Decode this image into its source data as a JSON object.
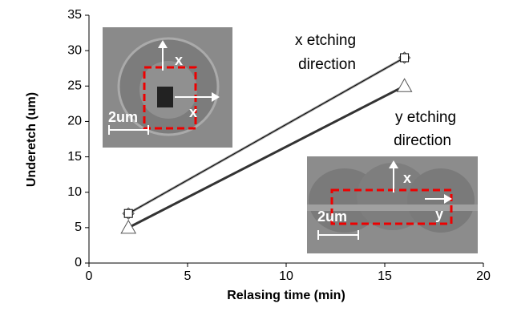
{
  "chart_data": {
    "type": "line",
    "x_label": "Relasing time (min)",
    "y_label": "Underetch (um)",
    "xlim": [
      0,
      20
    ],
    "xticks": [
      0,
      5,
      10,
      15,
      20
    ],
    "ylim": [
      0,
      35
    ],
    "yticks": [
      0,
      5,
      10,
      15,
      20,
      25,
      30,
      35
    ],
    "grid": false,
    "series": [
      {
        "color": "#999999",
        "marker": "diamond",
        "line_width": 3,
        "x": [
          2,
          16
        ],
        "values": [
          7,
          29
        ]
      },
      {
        "color": "#000000",
        "marker": "square",
        "line_width": 1,
        "x": [
          2,
          16
        ],
        "values": [
          7,
          29
        ]
      },
      {
        "color": "#333333",
        "marker": "triangle",
        "line_width": 3,
        "x": [
          2,
          16
        ],
        "values": [
          5,
          25
        ]
      }
    ],
    "annotations": [
      {
        "lines": [
          "x etching",
          "direction"
        ]
      },
      {
        "lines": [
          "y etching",
          "direction"
        ]
      }
    ]
  },
  "insets": [
    {
      "labels": [
        "x",
        "x",
        "2um"
      ]
    },
    {
      "labels": [
        "x",
        "y",
        "2um"
      ]
    }
  ]
}
